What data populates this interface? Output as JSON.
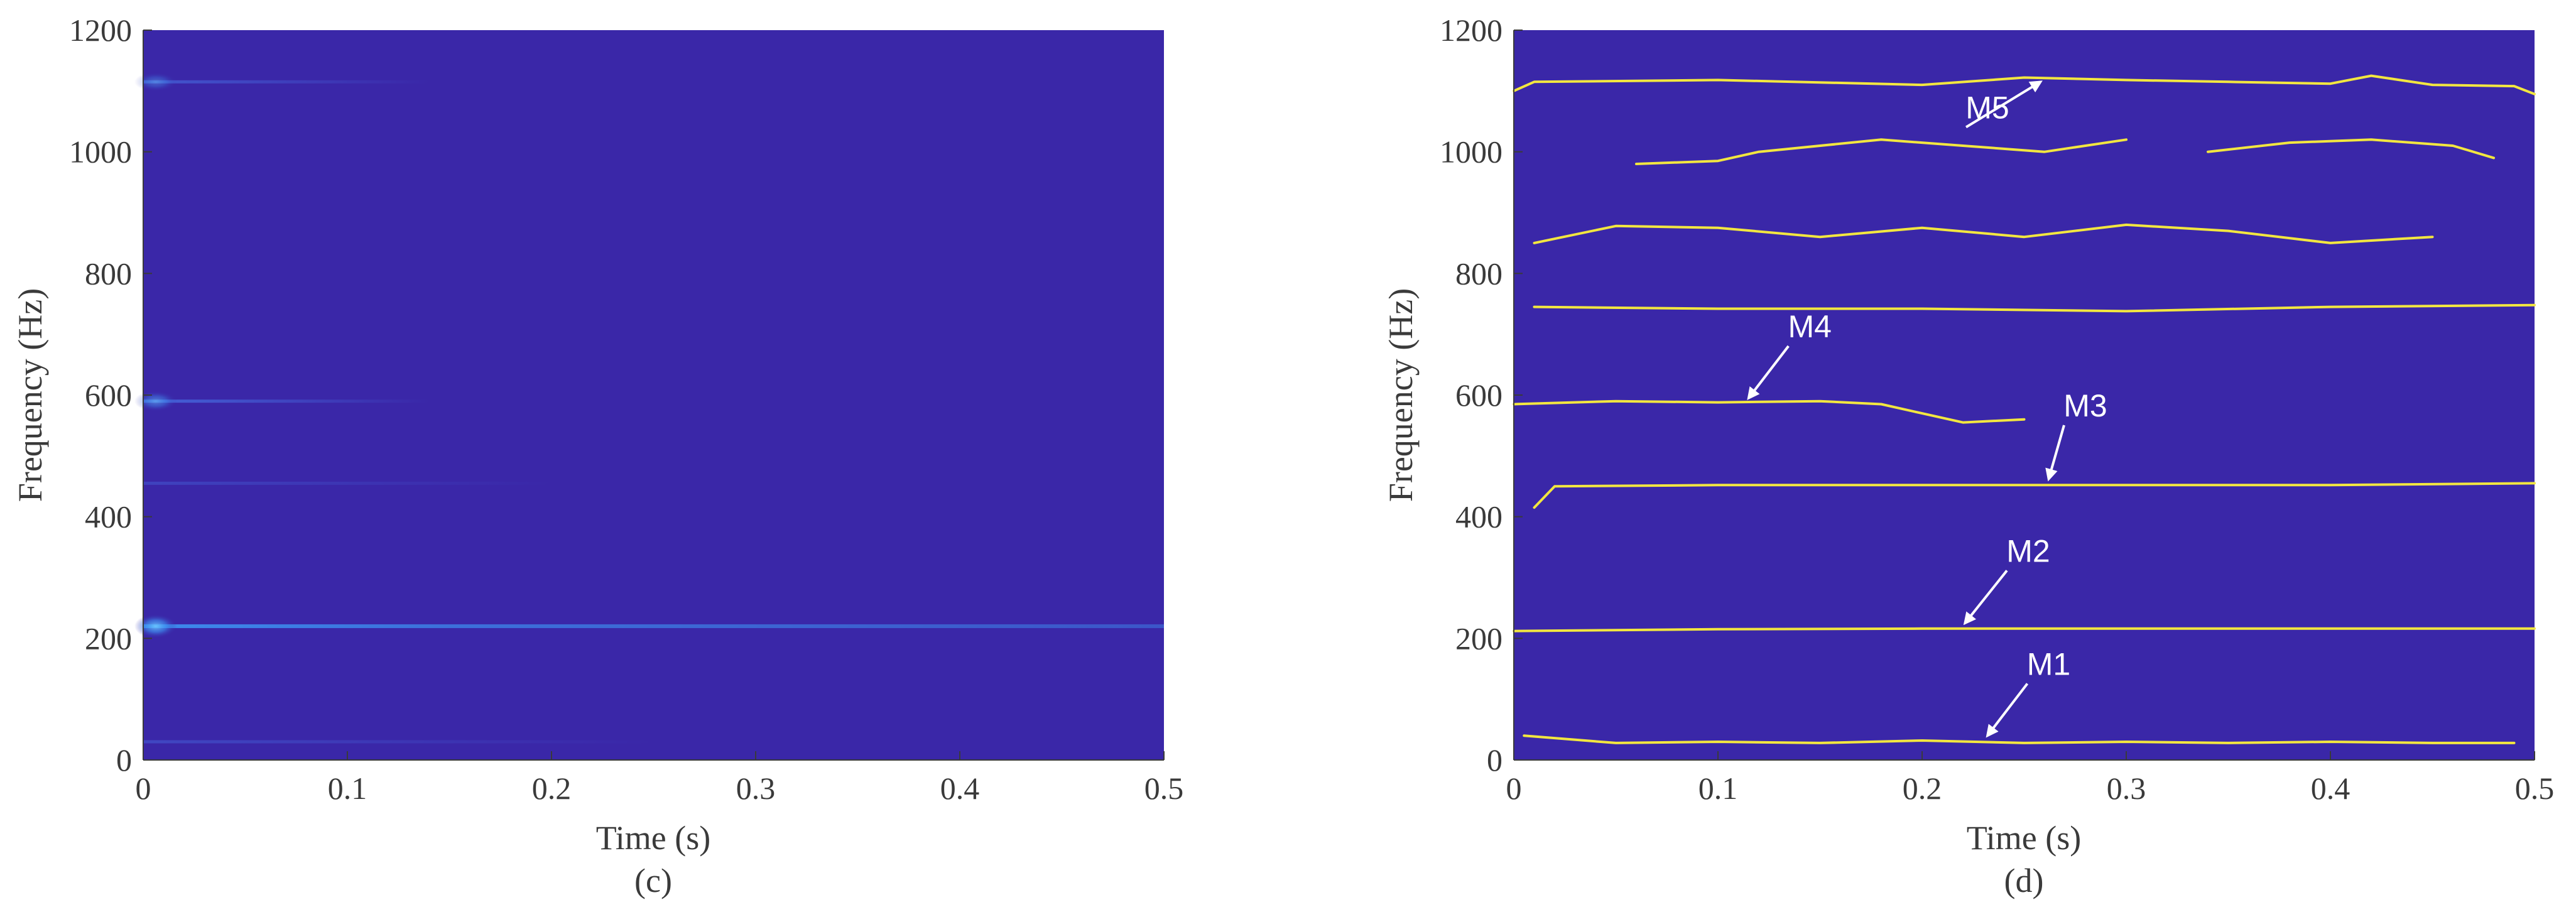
{
  "colors": {
    "background_low": "#3a27a8",
    "ridge": "#f2e640",
    "highlight": "#3d8ff0",
    "axis_text": "#3a3a3a"
  },
  "chart_data": [
    {
      "type": "heatmap",
      "panel_label": "(c)",
      "xlabel": "Time (s)",
      "ylabel": "Frequency (Hz)",
      "xlim": [
        0,
        0.5
      ],
      "ylim": [
        0,
        1200
      ],
      "xticks": [
        "0",
        "0.1",
        "0.2",
        "0.3",
        "0.4",
        "0.5"
      ],
      "yticks": [
        "0",
        "200",
        "400",
        "600",
        "800",
        "1000",
        "1200"
      ],
      "xtick_values": [
        0,
        0.1,
        0.2,
        0.3,
        0.4,
        0.5
      ],
      "ytick_values": [
        0,
        200,
        400,
        600,
        800,
        1000,
        1200
      ],
      "bands": [
        {
          "freq": 220,
          "t_start": 0.0,
          "t_end": 0.5,
          "strength": 0.9
        },
        {
          "freq": 590,
          "t_start": 0.0,
          "t_end": 0.14,
          "strength": 0.55
        },
        {
          "freq": 1115,
          "t_start": 0.0,
          "t_end": 0.14,
          "strength": 0.4
        },
        {
          "freq": 455,
          "t_start": 0.0,
          "t_end": 0.2,
          "strength": 0.15
        },
        {
          "freq": 30,
          "t_start": 0.0,
          "t_end": 0.25,
          "strength": 0.2
        }
      ]
    },
    {
      "type": "heatmap",
      "panel_label": "(d)",
      "xlabel": "Time (s)",
      "ylabel": "Frequency (Hz)",
      "xlim": [
        0,
        0.5
      ],
      "ylim": [
        0,
        1200
      ],
      "xticks": [
        "0",
        "0.1",
        "0.2",
        "0.3",
        "0.4",
        "0.5"
      ],
      "yticks": [
        "0",
        "200",
        "400",
        "600",
        "800",
        "1000",
        "1200"
      ],
      "xtick_values": [
        0,
        0.1,
        0.2,
        0.3,
        0.4,
        0.5
      ],
      "ytick_values": [
        0,
        200,
        400,
        600,
        800,
        1000,
        1200
      ],
      "ridges": [
        {
          "name": "M1",
          "points": [
            [
              0.005,
              40
            ],
            [
              0.05,
              28
            ],
            [
              0.1,
              30
            ],
            [
              0.15,
              28
            ],
            [
              0.2,
              32
            ],
            [
              0.25,
              28
            ],
            [
              0.3,
              30
            ],
            [
              0.35,
              28
            ],
            [
              0.4,
              30
            ],
            [
              0.45,
              28
            ],
            [
              0.49,
              28
            ]
          ]
        },
        {
          "name": "M2",
          "points": [
            [
              0.0,
              212
            ],
            [
              0.1,
              215
            ],
            [
              0.2,
              216
            ],
            [
              0.3,
              216
            ],
            [
              0.4,
              216
            ],
            [
              0.5,
              216
            ]
          ]
        },
        {
          "name": "M3",
          "points": [
            [
              0.01,
              415
            ],
            [
              0.02,
              450
            ],
            [
              0.1,
              452
            ],
            [
              0.2,
              452
            ],
            [
              0.3,
              452
            ],
            [
              0.4,
              452
            ],
            [
              0.5,
              455
            ]
          ]
        },
        {
          "name": "M4",
          "points": [
            [
              0.0,
              585
            ],
            [
              0.05,
              590
            ],
            [
              0.1,
              588
            ],
            [
              0.15,
              590
            ],
            [
              0.18,
              585
            ],
            [
              0.2,
              570
            ],
            [
              0.22,
              555
            ],
            [
              0.25,
              560
            ]
          ]
        },
        {
          "name": "",
          "points": [
            [
              0.01,
              745
            ],
            [
              0.1,
              742
            ],
            [
              0.2,
              742
            ],
            [
              0.3,
              738
            ],
            [
              0.4,
              745
            ],
            [
              0.5,
              748
            ]
          ]
        },
        {
          "name": "",
          "points": [
            [
              0.01,
              850
            ],
            [
              0.05,
              878
            ],
            [
              0.1,
              875
            ],
            [
              0.15,
              860
            ],
            [
              0.2,
              875
            ],
            [
              0.25,
              860
            ],
            [
              0.3,
              880
            ],
            [
              0.35,
              870
            ],
            [
              0.4,
              850
            ],
            [
              0.45,
              860
            ]
          ]
        },
        {
          "name": "",
          "points": [
            [
              0.06,
              980
            ],
            [
              0.1,
              985
            ],
            [
              0.12,
              1000
            ],
            [
              0.18,
              1020
            ],
            [
              0.22,
              1010
            ],
            [
              0.26,
              1000
            ],
            [
              0.3,
              1020
            ]
          ]
        },
        {
          "name": "",
          "points": [
            [
              0.34,
              1000
            ],
            [
              0.38,
              1015
            ],
            [
              0.42,
              1020
            ],
            [
              0.46,
              1010
            ],
            [
              0.48,
              990
            ]
          ]
        },
        {
          "name": "M5",
          "points": [
            [
              0.0,
              1100
            ],
            [
              0.01,
              1115
            ],
            [
              0.1,
              1118
            ],
            [
              0.2,
              1110
            ],
            [
              0.25,
              1122
            ],
            [
              0.3,
              1118
            ],
            [
              0.35,
              1115
            ],
            [
              0.4,
              1112
            ],
            [
              0.42,
              1125
            ],
            [
              0.45,
              1110
            ],
            [
              0.49,
              1108
            ],
            [
              0.5,
              1095
            ]
          ]
        }
      ],
      "annotations": [
        {
          "label": "M1",
          "text_x": 0.262,
          "text_y": 140,
          "arrow_to_x": 0.232,
          "arrow_to_y": 40
        },
        {
          "label": "M2",
          "text_x": 0.252,
          "text_y": 326,
          "arrow_to_x": 0.221,
          "arrow_to_y": 225
        },
        {
          "label": "M3",
          "text_x": 0.28,
          "text_y": 565,
          "arrow_to_x": 0.262,
          "arrow_to_y": 462
        },
        {
          "label": "M4",
          "text_x": 0.145,
          "text_y": 695,
          "arrow_to_x": 0.115,
          "arrow_to_y": 595
        },
        {
          "label": "M5",
          "text_x": 0.232,
          "text_y": 1055,
          "arrow_to_x": 0.258,
          "arrow_to_y": 1115
        }
      ]
    }
  ]
}
